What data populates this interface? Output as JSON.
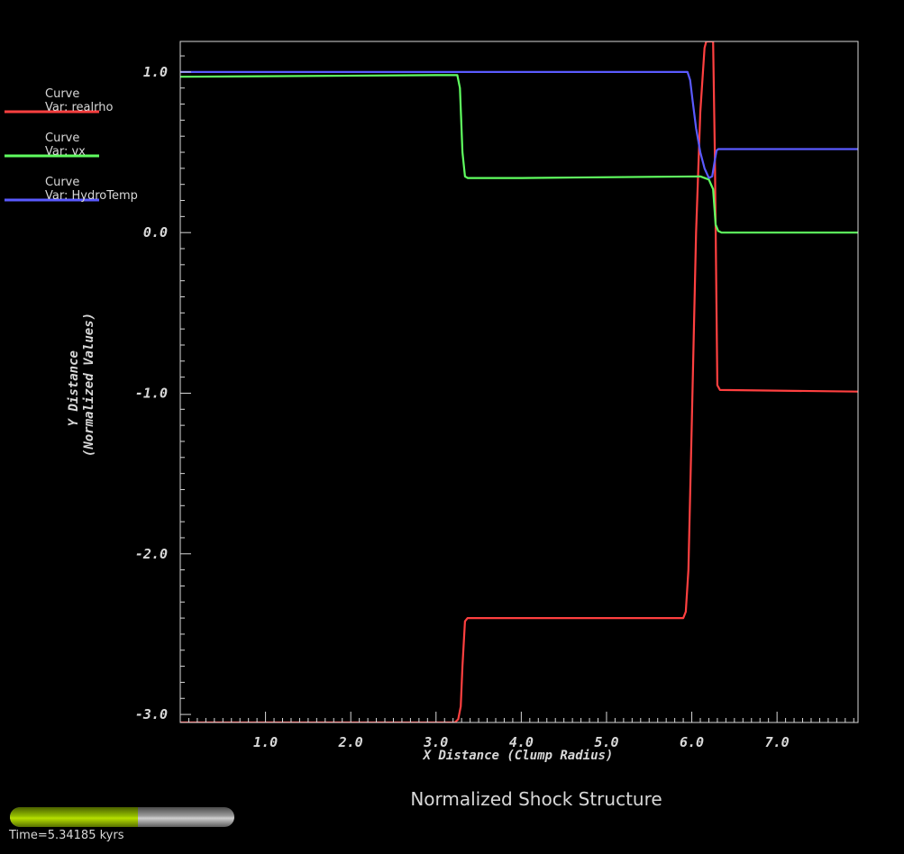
{
  "title": "Normalized Shock Structure",
  "time_label": "Time=5.34185 kyrs",
  "progress_fraction": 0.57,
  "colors": {
    "background": "#000000",
    "axis": "#d8d8d8",
    "realrho": "#ff4040",
    "vx": "#60ff60",
    "HydroTemp": "#5a5aff",
    "progress_fill": "#a8d000"
  },
  "chart_data": {
    "type": "line",
    "xlabel": "X Distance (Clump Radius)",
    "ylabel": "Y Distance\n(Normalized Values)",
    "xlim": [
      0.0,
      7.95
    ],
    "ylim": [
      -3.05,
      1.19
    ],
    "xticks": [
      "1.0",
      "2.0",
      "3.0",
      "4.0",
      "5.0",
      "6.0",
      "7.0"
    ],
    "yticks": [
      "1.0",
      "0.0",
      "-1.0",
      "-2.0",
      "-3.0"
    ],
    "grid": false,
    "legend_position": "left",
    "series": [
      {
        "name": "Curve\nVar: realrho",
        "legend_title": "Curve",
        "legend_var": "Var: realrho",
        "color": "#ff4040",
        "x": [
          0.0,
          3.22,
          3.26,
          3.29,
          3.31,
          3.34,
          3.37,
          5.9,
          5.93,
          5.96,
          6.0,
          6.05,
          6.1,
          6.15,
          6.17,
          6.25,
          6.27,
          6.3,
          6.33,
          7.95
        ],
        "y": [
          -3.05,
          -3.05,
          -3.03,
          -2.95,
          -2.7,
          -2.42,
          -2.4,
          -2.4,
          -2.36,
          -2.1,
          -1.2,
          0.0,
          0.75,
          1.15,
          1.19,
          1.19,
          0.5,
          -0.95,
          -0.98,
          -0.99
        ]
      },
      {
        "name": "Curve\nVar: vx",
        "legend_title": "Curve",
        "legend_var": "Var: vx",
        "color": "#60ff60",
        "x": [
          0.0,
          3.0,
          3.25,
          3.28,
          3.31,
          3.34,
          3.37,
          4.0,
          6.1,
          6.2,
          6.25,
          6.28,
          6.31,
          6.35,
          7.95
        ],
        "y": [
          0.97,
          0.98,
          0.98,
          0.9,
          0.5,
          0.35,
          0.34,
          0.34,
          0.35,
          0.33,
          0.27,
          0.05,
          0.01,
          0.0,
          0.0
        ]
      },
      {
        "name": "Curve\nVar: HydroTemp",
        "legend_title": "Curve",
        "legend_var": "Var: HydroTemp",
        "color": "#5a5aff",
        "x": [
          0.0,
          5.95,
          5.98,
          6.01,
          6.05,
          6.1,
          6.15,
          6.2,
          6.24,
          6.27,
          6.29,
          6.31,
          7.95
        ],
        "y": [
          1.0,
          1.0,
          0.95,
          0.82,
          0.65,
          0.5,
          0.4,
          0.34,
          0.35,
          0.45,
          0.51,
          0.52,
          0.52
        ]
      }
    ]
  }
}
